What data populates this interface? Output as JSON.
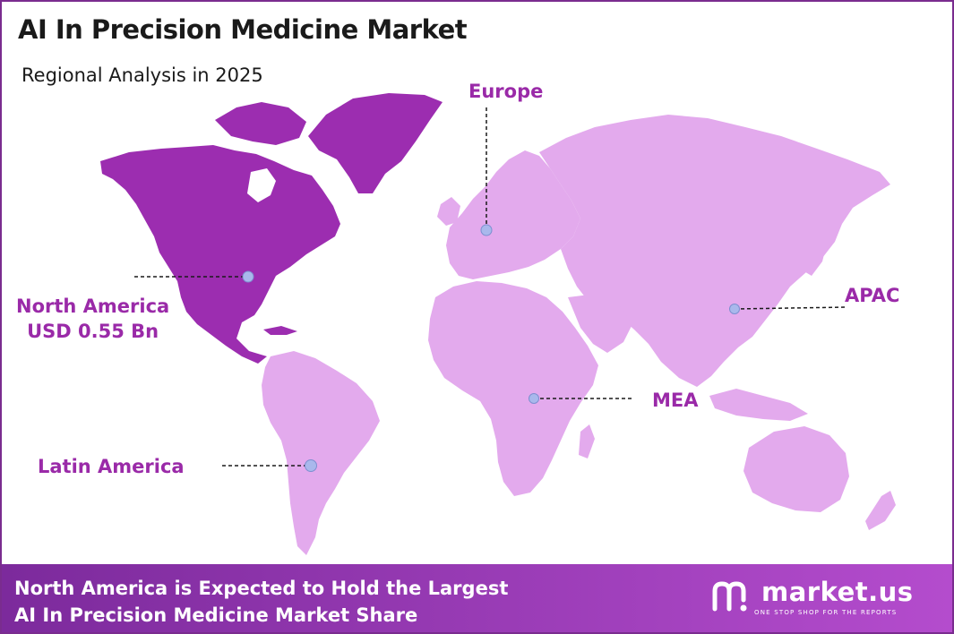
{
  "header": {
    "title": "AI In Precision Medicine Market",
    "subtitle": "Regional Analysis in 2025"
  },
  "regions": {
    "north_america": {
      "name": "North America",
      "value": "USD 0.55 Bn",
      "highlighted": true
    },
    "europe": {
      "name": "Europe"
    },
    "apac": {
      "name": "APAC"
    },
    "mea": {
      "name": "MEA"
    },
    "latin_america": {
      "name": "Latin America"
    }
  },
  "colors": {
    "highlight": "#9c2db0",
    "land": "#e3aaed",
    "label": "#9a2aa8",
    "marker": "#a9b8ec",
    "footer_start": "#7c2a9c",
    "footer_end": "#b44ccd"
  },
  "footer": {
    "line1": "North America is Expected to Hold the Largest",
    "line2": "AI In Precision Medicine Market Share"
  },
  "brand": {
    "name": "market.us",
    "tagline": "ONE STOP SHOP FOR THE REPORTS",
    "icon": "market-us-logo-icon"
  }
}
